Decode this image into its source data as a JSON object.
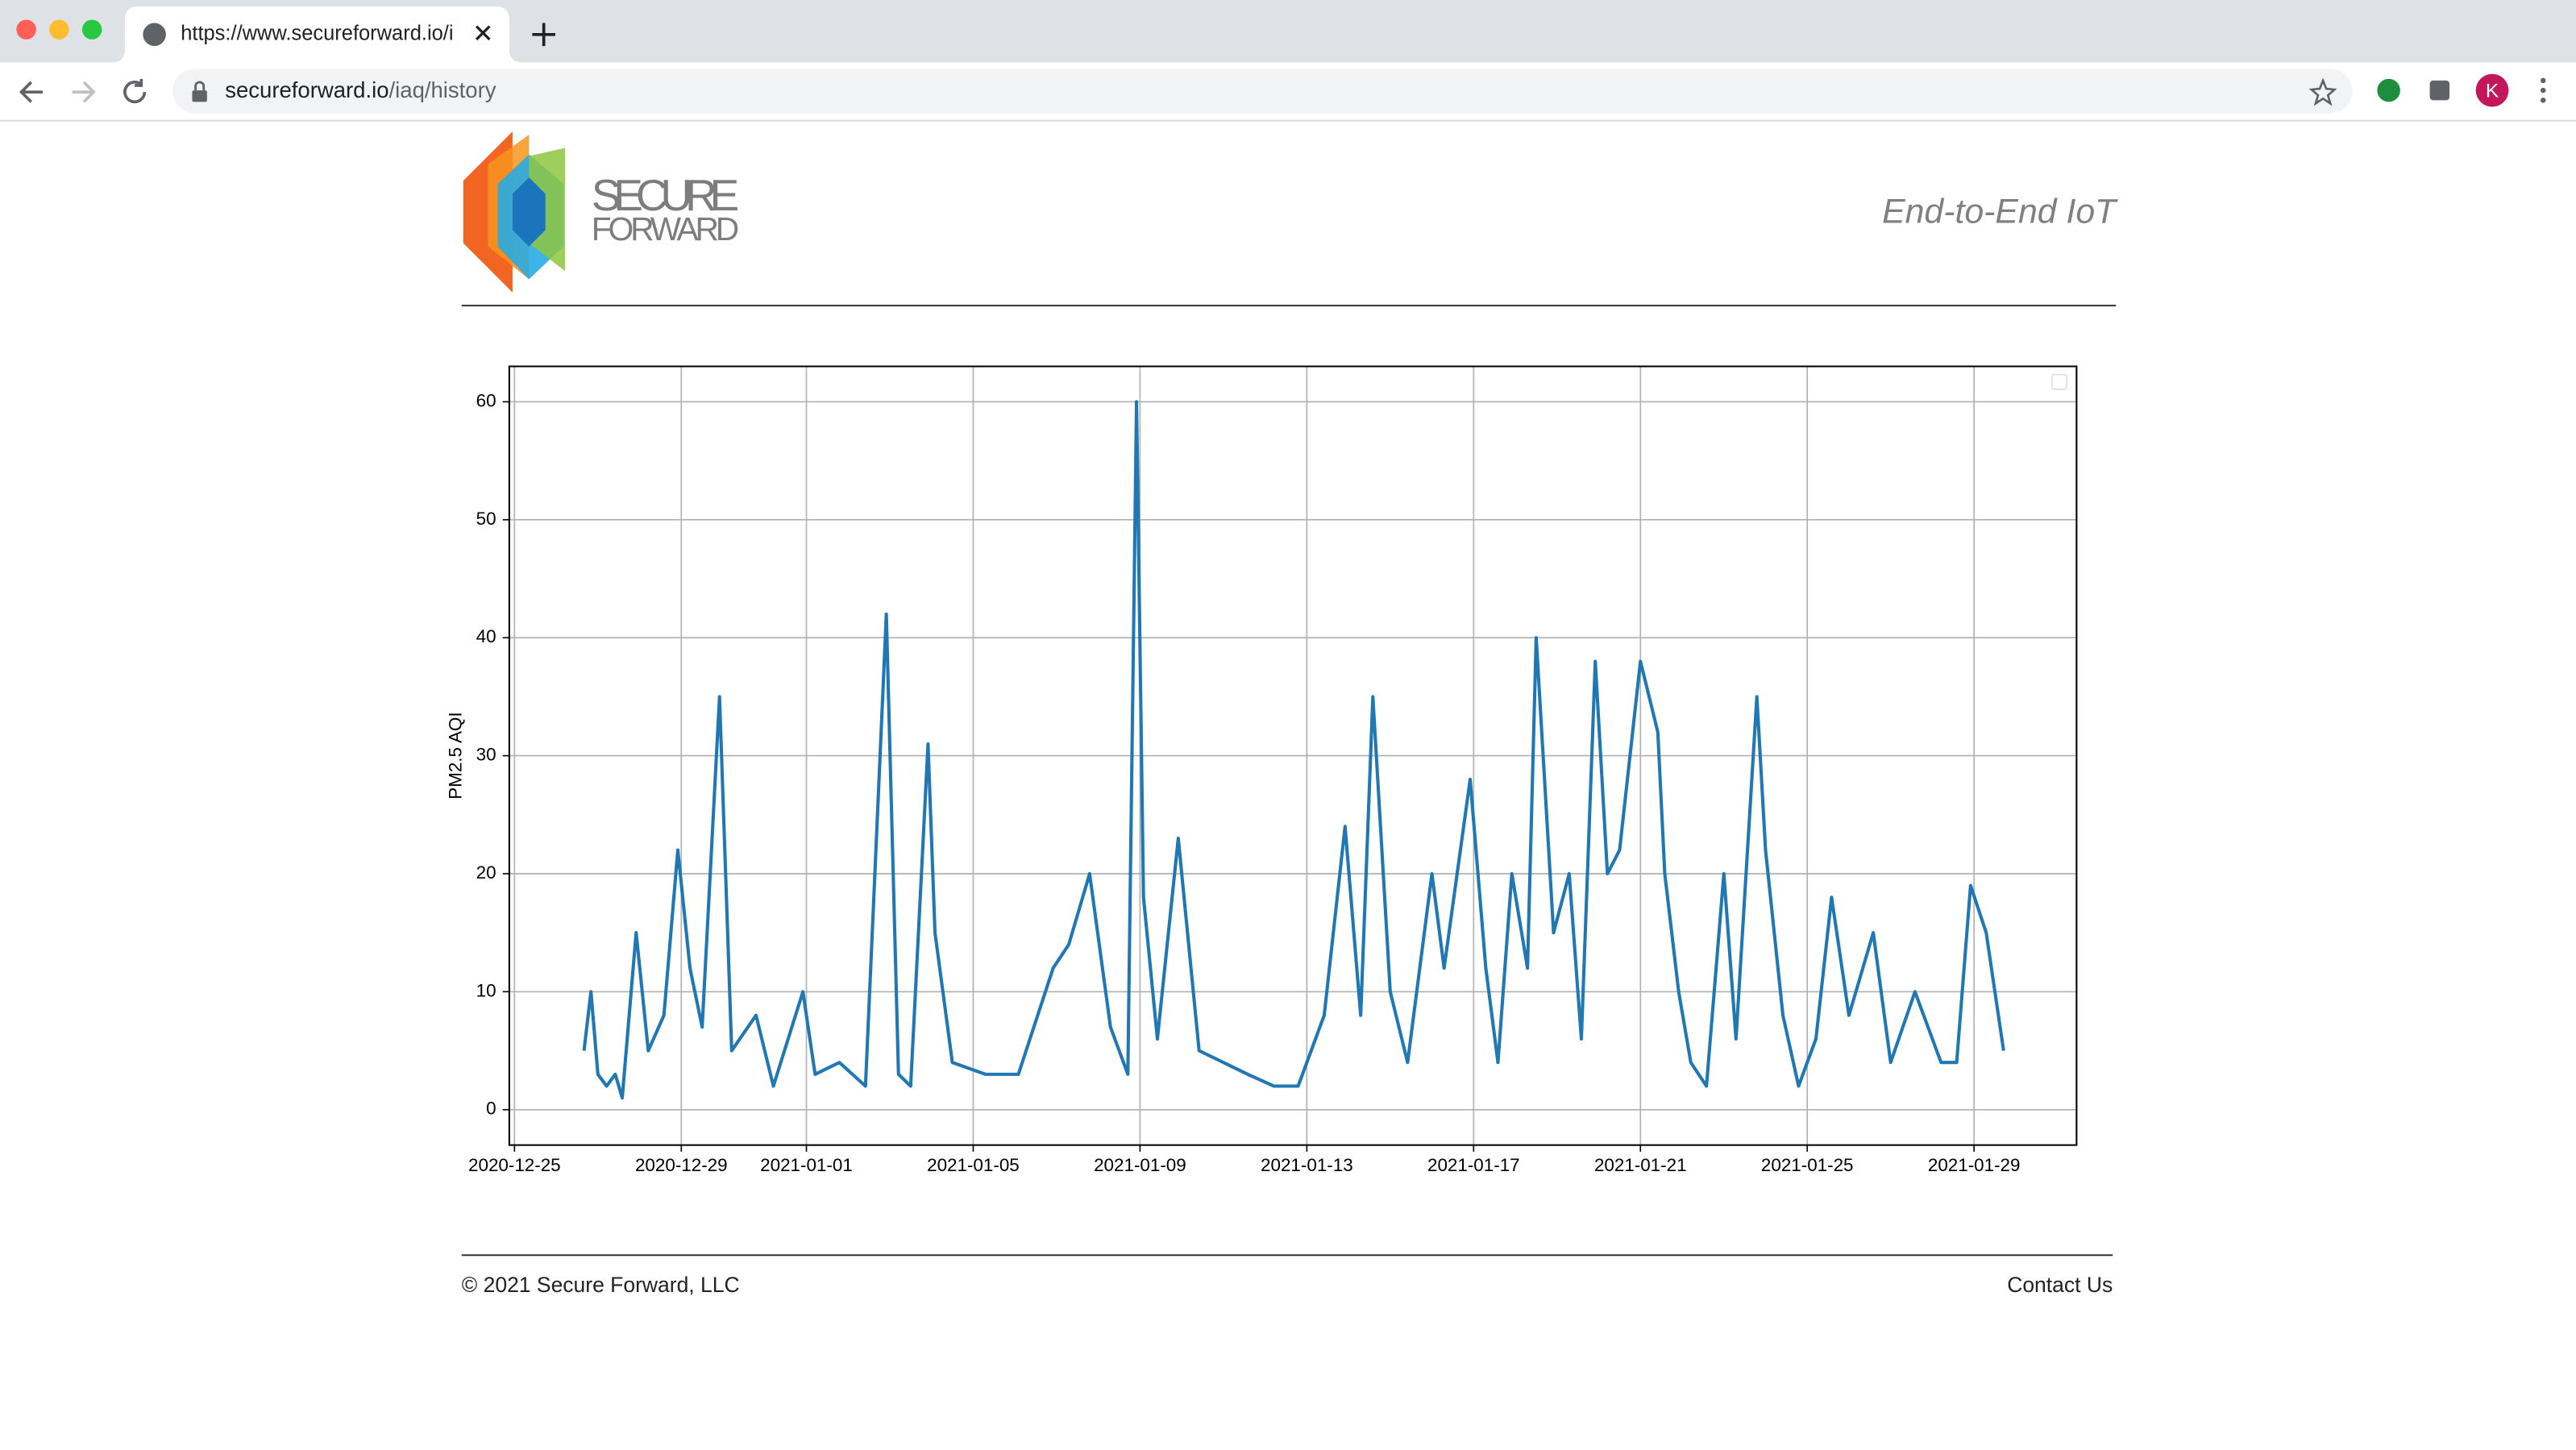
{
  "browser": {
    "tab_title": "https://www.secureforward.io/i",
    "url_host": "secureforward.io",
    "url_path": "/iaq/history",
    "avatar": "K"
  },
  "header": {
    "logo_line1": "SECURE",
    "logo_line2": "FORWARD",
    "tagline": "End-to-End IoT"
  },
  "chart_data": {
    "type": "line",
    "ylabel": "PM2.5 AQI",
    "color": "#1f77b4",
    "grid": true,
    "xlim": [
      "2020-12-24 21:00",
      "2021-01-31 11:00"
    ],
    "xticks": [
      "2020-12-25",
      "2020-12-29",
      "2021-01-01",
      "2021-01-05",
      "2021-01-09",
      "2021-01-13",
      "2021-01-17",
      "2021-01-21",
      "2021-01-25",
      "2021-01-29"
    ],
    "ylim": [
      -3,
      63
    ],
    "yticks": [
      0,
      10,
      20,
      30,
      40,
      50,
      60
    ],
    "x": [
      "2020-12-26 16:00",
      "2020-12-26 20:00",
      "2020-12-27 00:00",
      "2020-12-27 05:00",
      "2020-12-27 10:00",
      "2020-12-27 14:00",
      "2020-12-27 22:00",
      "2020-12-28 05:00",
      "2020-12-28 14:00",
      "2020-12-28 22:00",
      "2020-12-29 05:00",
      "2020-12-29 12:00",
      "2020-12-29 22:00",
      "2020-12-30 05:00",
      "2020-12-30 19:00",
      "2020-12-31 05:00",
      "2020-12-31 22:00",
      "2021-01-01 05:00",
      "2021-01-01 19:00",
      "2021-01-02 10:00",
      "2021-01-02 22:00",
      "2021-01-03 05:00",
      "2021-01-03 12:00",
      "2021-01-03 22:00",
      "2021-01-04 02:00",
      "2021-01-04 12:00",
      "2021-01-05 07:00",
      "2021-01-06 02:00",
      "2021-01-06 22:00",
      "2021-01-07 07:00",
      "2021-01-07 19:00",
      "2021-01-08 07:00",
      "2021-01-08 17:00",
      "2021-01-08 22:00",
      "2021-01-09 02:00",
      "2021-01-09 10:00",
      "2021-01-09 22:00",
      "2021-01-10 10:00",
      "2021-01-11 00:00",
      "2021-01-11 14:00",
      "2021-01-12 05:00",
      "2021-01-12 19:00",
      "2021-01-13 10:00",
      "2021-01-13 22:00",
      "2021-01-14 07:00",
      "2021-01-14 14:00",
      "2021-01-15 00:00",
      "2021-01-15 10:00",
      "2021-01-16 00:00",
      "2021-01-16 07:00",
      "2021-01-16 22:00",
      "2021-01-17 07:00",
      "2021-01-17 14:00",
      "2021-01-17 22:00",
      "2021-01-18 07:00",
      "2021-01-18 12:00",
      "2021-01-18 22:00",
      "2021-01-19 07:00",
      "2021-01-19 14:00",
      "2021-01-19 22:00",
      "2021-01-20 05:00",
      "2021-01-20 12:00",
      "2021-01-20 18:00",
      "2021-01-21 00:00",
      "2021-01-21 10:00",
      "2021-01-21 14:00",
      "2021-01-21 22:00",
      "2021-01-22 05:00",
      "2021-01-22 14:00",
      "2021-01-23 00:00",
      "2021-01-23 07:00",
      "2021-01-23 19:00",
      "2021-01-24 00:00",
      "2021-01-24 10:00",
      "2021-01-24 19:00",
      "2021-01-25 05:00",
      "2021-01-25 14:00",
      "2021-01-26 00:00",
      "2021-01-26 14:00",
      "2021-01-27 00:00",
      "2021-01-27 14:00",
      "2021-01-28 05:00",
      "2021-01-28 14:00",
      "2021-01-28 22:00",
      "2021-01-29 07:00",
      "2021-01-29 17:00"
    ],
    "values": [
      5,
      10,
      3,
      2,
      3,
      1,
      15,
      5,
      8,
      22,
      12,
      7,
      35,
      5,
      8,
      2,
      10,
      3,
      4,
      2,
      42,
      3,
      2,
      31,
      15,
      4,
      3,
      3,
      12,
      14,
      20,
      7,
      3,
      60,
      18,
      6,
      23,
      5,
      4,
      3,
      2,
      2,
      8,
      24,
      8,
      35,
      10,
      4,
      20,
      12,
      28,
      12,
      4,
      20,
      12,
      40,
      15,
      20,
      6,
      38,
      20,
      22,
      30,
      38,
      32,
      20,
      10,
      4,
      2,
      20,
      6,
      35,
      22,
      8,
      2,
      6,
      18,
      8,
      15,
      4,
      10,
      4,
      4,
      19,
      15,
      5
    ]
  },
  "footer": {
    "copyright": "© 2021 Secure Forward, LLC",
    "contact": "Contact Us"
  }
}
